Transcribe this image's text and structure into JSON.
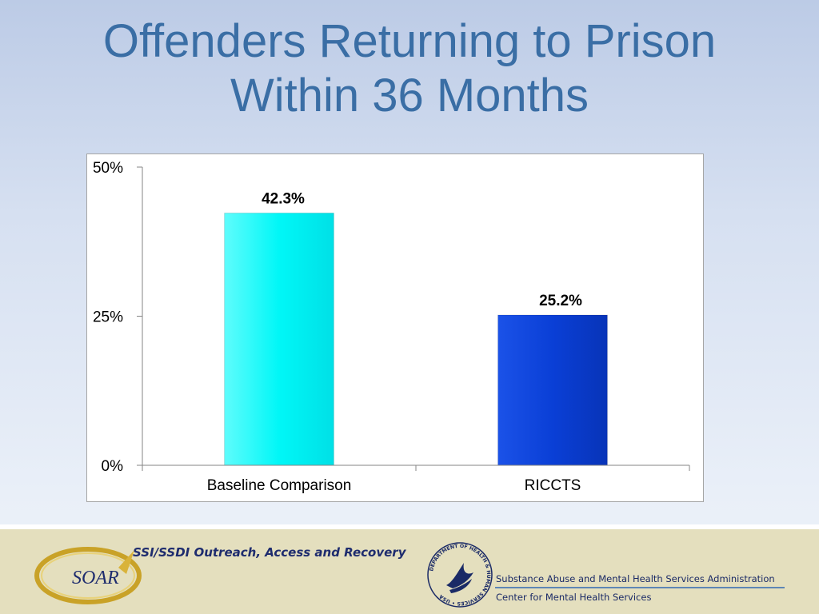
{
  "title": {
    "line1": "Offenders Returning to Prison",
    "line2": "Within 36 Months"
  },
  "chart_data": {
    "type": "bar",
    "categories": [
      "Baseline Comparison",
      "RICCTS"
    ],
    "values": [
      42.3,
      25.2
    ],
    "data_labels": [
      "42.3%",
      "25.2%"
    ],
    "y_ticks": [
      {
        "value": 0,
        "label": "0%"
      },
      {
        "value": 25,
        "label": "25%"
      },
      {
        "value": 50,
        "label": "50%"
      }
    ],
    "ylim": [
      0,
      50
    ],
    "bar_colors": [
      "#00f7f7",
      "#0a3fd6"
    ],
    "grid": false,
    "legend": "none"
  },
  "footer": {
    "soar_logo_text": "SOAR",
    "soar_tagline": "SSI/SSDI Outreach, Access and Recovery",
    "samhsa_line1": "Substance Abuse and Mental Health Services Administration",
    "samhsa_line2": "Center for Mental Health Services",
    "hhs_seal_text": "DEPARTMENT OF HEALTH & HUMAN SERVICES • USA"
  }
}
